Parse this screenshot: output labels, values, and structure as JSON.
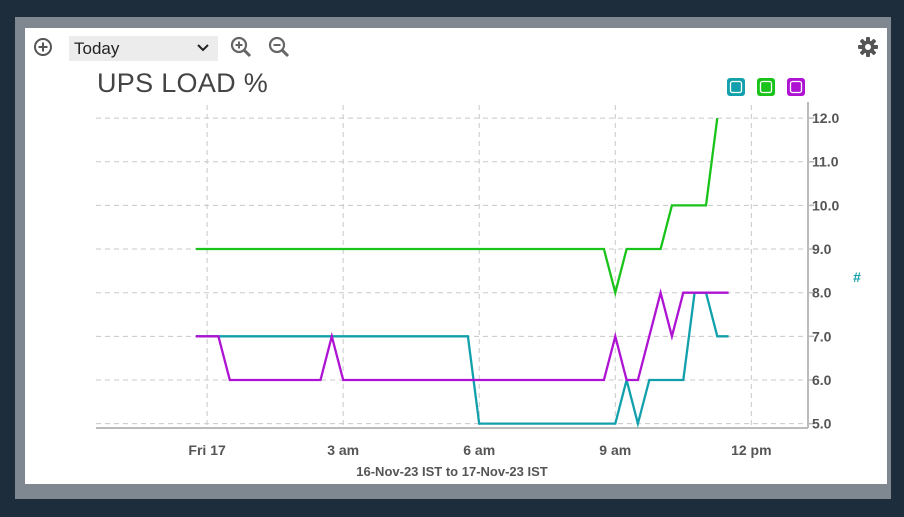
{
  "toolbar": {
    "range_value": "Today",
    "add_icon": "plus-circle-icon",
    "zoom_in_icon": "zoom-in-icon",
    "zoom_out_icon": "zoom-out-icon",
    "settings_icon": "gear-icon"
  },
  "axis_hash_label": "#",
  "colors": {
    "teal": "#13a0ad",
    "green": "#19c319",
    "purple": "#ae12d2"
  },
  "chart_data": {
    "type": "line",
    "title": "UPS LOAD %",
    "subtitle": "16-Nov-23 IST to 17-Nov-23 IST",
    "xlabel": "",
    "ylabel": "#",
    "x_tick_labels": [
      "Fri 17",
      "3 am",
      "6 am",
      "9 am",
      "12 pm"
    ],
    "x_tick_hours": [
      0,
      3,
      6,
      9,
      12
    ],
    "xlim": [
      -2.45,
      13.25
    ],
    "ylim": [
      4.9,
      12.3
    ],
    "y_ticks": [
      "5.0",
      "6.0",
      "7.0",
      "8.0",
      "9.0",
      "10.0",
      "11.0",
      "12.0"
    ],
    "grid": true,
    "legend": "top-right",
    "series": [
      {
        "color": "#13a0ad",
        "x": [
          -0.25,
          5.75,
          6,
          9,
          9.25,
          9.5,
          9.75,
          10,
          10.5,
          10.75,
          11,
          11.25,
          11.5
        ],
        "y": [
          7,
          7,
          5,
          5,
          6,
          5,
          6,
          6,
          6,
          8,
          8,
          7,
          7
        ]
      },
      {
        "color": "#19c319",
        "x": [
          -0.25,
          8.75,
          9,
          9.25,
          10,
          10.25,
          11,
          11.25
        ],
        "y": [
          9,
          9,
          8,
          9,
          9,
          10,
          10,
          12
        ]
      },
      {
        "color": "#ae12d2",
        "x": [
          -0.25,
          0.25,
          0.5,
          2.5,
          2.75,
          3,
          8.75,
          9,
          9.25,
          9.5,
          10,
          10.25,
          10.5,
          11,
          11.5
        ],
        "y": [
          7,
          7,
          6,
          6,
          7,
          6,
          6,
          7,
          6,
          6,
          8,
          7,
          8,
          8,
          8
        ]
      }
    ]
  }
}
